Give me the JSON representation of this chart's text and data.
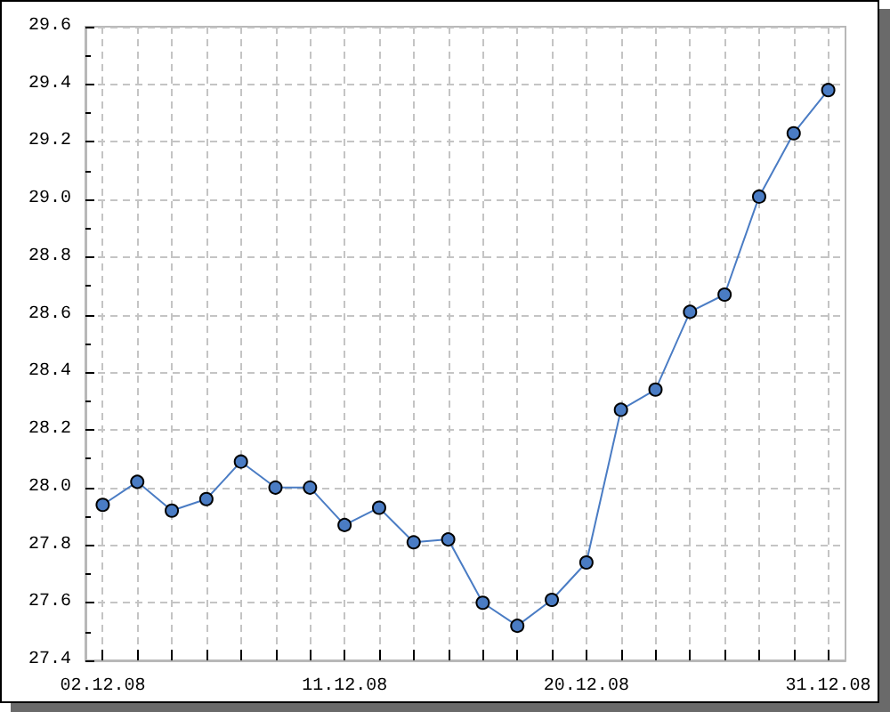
{
  "chart_data": {
    "type": "line",
    "categories": [
      "02.12.08",
      null,
      null,
      null,
      null,
      null,
      null,
      "11.12.08",
      null,
      null,
      null,
      null,
      null,
      null,
      "20.12.08",
      null,
      null,
      null,
      null,
      null,
      null,
      "31.12.08"
    ],
    "values": [
      27.94,
      28.02,
      27.92,
      27.96,
      28.09,
      28.0,
      28.0,
      27.87,
      27.93,
      27.81,
      27.82,
      27.6,
      27.52,
      27.61,
      27.74,
      28.27,
      28.34,
      28.61,
      28.67,
      29.01,
      29.23,
      29.38
    ],
    "color": "#4a7cc4",
    "ylim": [
      27.4,
      29.6
    ],
    "yticks": [
      27.4,
      {
        "value": 27.5,
        "label": null
      },
      27.6,
      {
        "value": 27.7,
        "label": null
      },
      27.8,
      {
        "value": 27.9,
        "label": null
      },
      {
        "value": 28,
        "label": "28.0"
      },
      {
        "value": 28.1,
        "label": null
      },
      28.2,
      {
        "value": 28.3,
        "label": null
      },
      28.4,
      {
        "value": 28.5,
        "label": null
      },
      28.6,
      {
        "value": 28.7,
        "label": null
      },
      28.8,
      {
        "value": 28.9,
        "label": null
      },
      {
        "value": 29,
        "label": "29.0"
      },
      {
        "value": 29.1,
        "label": null
      },
      29.2,
      {
        "value": 29.3,
        "label": null
      },
      29.4,
      {
        "value": 29.5,
        "label": null
      },
      29.6
    ],
    "grid": true,
    "marker": "circle",
    "line_style": "solid"
  }
}
